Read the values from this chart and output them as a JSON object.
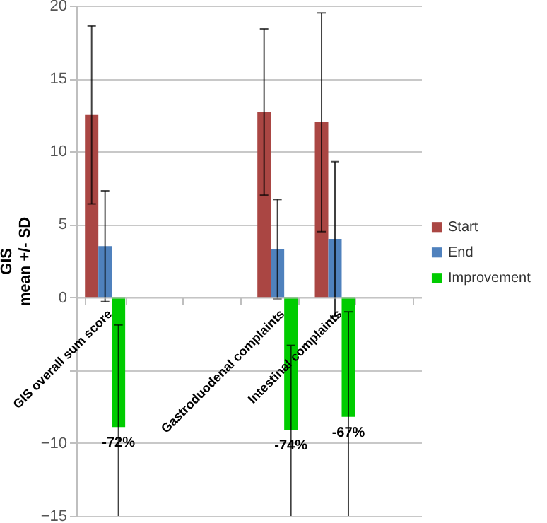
{
  "chart_data": {
    "type": "bar",
    "ylabel": "GIS\nmean +/- SD",
    "categories": [
      "GIS overall sum score",
      null,
      null,
      "Gastroduodenal complaints",
      "Intestinal complaints",
      null
    ],
    "series": [
      {
        "name": "Start",
        "color": "#aa4643",
        "values": [
          12.5,
          null,
          null,
          12.7,
          12.0,
          null
        ],
        "errors": [
          6.1,
          null,
          null,
          5.7,
          7.5,
          null
        ]
      },
      {
        "name": "End",
        "color": "#4f81bd",
        "values": [
          3.5,
          null,
          null,
          3.3,
          4.0,
          null
        ],
        "errors": [
          3.8,
          null,
          null,
          3.4,
          5.3,
          null
        ]
      },
      {
        "name": "Improvement",
        "color": "#00cc00",
        "values": [
          -8.9,
          null,
          null,
          -9.1,
          -8.2,
          null
        ],
        "errors": [
          [
            -15,
            -1.9
          ],
          null,
          null,
          [
            -15,
            -3.3
          ],
          [
            -15,
            -1.0
          ],
          null
        ]
      }
    ],
    "annotations": [
      {
        "text": "-72%",
        "x": "GIS overall sum score",
        "y": -8.9
      },
      {
        "text": "-74%",
        "x": "Gastroduodenal complaints",
        "y": -9.1
      },
      {
        "text": "-67%",
        "x": "Intestinal complaints",
        "y": -8.2
      }
    ],
    "ylim": [
      -15,
      20
    ],
    "yticks": [
      -15,
      -10,
      {
        "value": -5,
        "label": null
      },
      0,
      5,
      10,
      15,
      20
    ],
    "grid": "y",
    "legend": "right"
  }
}
